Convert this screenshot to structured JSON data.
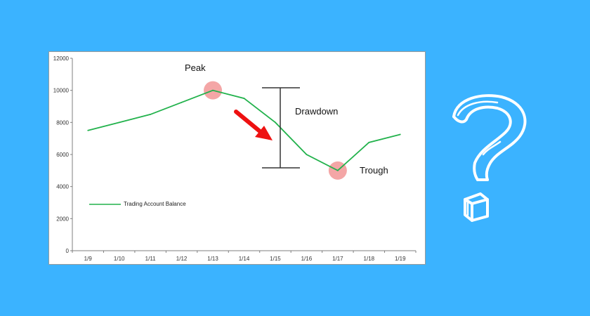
{
  "chart_data": {
    "type": "line",
    "categories": [
      "1/9",
      "1/10",
      "1/11",
      "1/12",
      "1/13",
      "1/14",
      "1/15",
      "1/16",
      "1/17",
      "1/18",
      "1/19"
    ],
    "series": [
      {
        "name": "Trading Account Balance",
        "values": [
          7500,
          8000,
          8500,
          9250,
          10000,
          9500,
          8000,
          6000,
          5000,
          6750,
          7250
        ]
      }
    ],
    "ylim": [
      0,
      12000
    ],
    "yticks": [
      0,
      2000,
      4000,
      6000,
      8000,
      10000,
      12000
    ],
    "grid": false,
    "legend": "bottom-left inside",
    "annotations": {
      "peak_label": "Peak",
      "drawdown_label": "Drawdown",
      "trough_label": "Trough",
      "peak_index": 4,
      "trough_index": 8
    },
    "colors": {
      "line": "#22b24c",
      "marker": "#f4a6a6",
      "arrow": "#ee1111"
    }
  },
  "decoration": {
    "question_mark_icon": "question-mark-icon"
  }
}
